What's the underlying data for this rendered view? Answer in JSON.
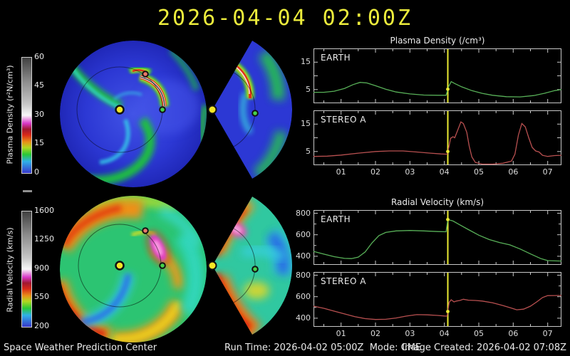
{
  "title": "2026-04-04 02:00Z",
  "colorbars": {
    "density": {
      "label": "Plasma Density (r²N/cm³)",
      "ticks": [
        "60",
        "45",
        "30",
        "15",
        "0"
      ]
    },
    "velocity": {
      "label": "Radial Velocity (km/s)",
      "ticks": [
        "1600",
        "1250",
        "900",
        "550",
        "200"
      ]
    }
  },
  "markers": {
    "sun_color": "#f5e626",
    "earth_color": "#46d24a",
    "stereo_a_color": "#e87868"
  },
  "footer": {
    "left": "Space Weather Prediction Center",
    "center": "Run Time: 2026-04-02 05:00Z  Mode: CME",
    "right": "Image Created: 2026-04-02 07:08Z"
  },
  "chart_data": [
    {
      "type": "line",
      "group": "Plasma Density (/cm³)",
      "series_label": "EARTH",
      "color": "#58b058",
      "now_line_x": 4.1,
      "now_color": "#ecec32",
      "xlim": [
        0.2,
        7.4
      ],
      "ylim": [
        0,
        20
      ],
      "xticks": [
        1,
        2,
        3,
        4,
        5,
        6,
        7
      ],
      "xticklabels": [
        "01",
        "02",
        "03",
        "04",
        "05",
        "06",
        "07"
      ],
      "yticks": [
        5,
        10,
        15
      ],
      "yticklabels": [
        "5",
        "",
        "15"
      ],
      "yminor": [],
      "x": [
        0.2,
        0.5,
        0.8,
        1.1,
        1.35,
        1.55,
        1.75,
        2.0,
        2.3,
        2.6,
        3.0,
        3.4,
        3.8,
        4.05,
        4.12,
        4.2,
        4.3,
        4.5,
        4.8,
        5.1,
        5.4,
        5.8,
        6.2,
        6.6,
        6.9,
        7.2,
        7.4
      ],
      "y": [
        4.0,
        4.0,
        4.4,
        5.4,
        6.8,
        7.6,
        7.4,
        6.4,
        5.1,
        4.1,
        3.4,
        3.0,
        2.9,
        2.9,
        6.0,
        7.9,
        7.2,
        6.0,
        4.6,
        3.6,
        2.9,
        2.4,
        2.3,
        2.8,
        3.6,
        4.6,
        5.0
      ]
    },
    {
      "type": "line",
      "group": "Plasma Density (/cm³)",
      "series_label": "STEREO A",
      "color": "#b85050",
      "now_line_x": 4.1,
      "now_color": "#ecec32",
      "xlim": [
        0.2,
        7.4
      ],
      "ylim": [
        0,
        20
      ],
      "xticks": [
        1,
        2,
        3,
        4,
        5,
        6,
        7
      ],
      "xticklabels": [
        "01",
        "02",
        "03",
        "04",
        "05",
        "06",
        "07"
      ],
      "yticks": [
        5,
        10,
        15
      ],
      "yticklabels": [
        "5",
        "",
        "15"
      ],
      "yminor": [],
      "x": [
        0.2,
        0.6,
        1.0,
        1.5,
        2.0,
        2.4,
        2.8,
        3.2,
        3.6,
        3.9,
        4.08,
        4.13,
        4.18,
        4.25,
        4.3,
        4.38,
        4.48,
        4.55,
        4.65,
        4.72,
        4.8,
        4.9,
        5.1,
        5.4,
        5.7,
        5.95,
        6.05,
        6.15,
        6.25,
        6.35,
        6.45,
        6.55,
        6.65,
        6.75,
        6.85,
        7.0,
        7.2,
        7.4
      ],
      "y": [
        3.2,
        3.3,
        3.7,
        4.4,
        5.0,
        5.2,
        5.2,
        4.8,
        4.4,
        4.1,
        4.0,
        6.5,
        9.8,
        10.4,
        10.0,
        12.5,
        15.8,
        15.2,
        12.0,
        7.0,
        3.0,
        1.0,
        0.4,
        0.4,
        0.7,
        1.5,
        4.0,
        11.0,
        15.2,
        14.0,
        10.0,
        6.5,
        5.2,
        4.8,
        3.6,
        3.2,
        3.5,
        3.6
      ]
    },
    {
      "type": "line",
      "group": "Radial Velocity (km/s)",
      "series_label": "EARTH",
      "color": "#58b058",
      "now_line_x": 4.1,
      "now_color": "#ecec32",
      "xlim": [
        0.2,
        7.4
      ],
      "ylim": [
        320,
        830
      ],
      "xticks": [
        1,
        2,
        3,
        4,
        5,
        6,
        7
      ],
      "xticklabels": [
        "01",
        "02",
        "03",
        "04",
        "05",
        "06",
        "07"
      ],
      "yticks": [
        400,
        600,
        800
      ],
      "yticklabels": [
        "400",
        "600",
        "800"
      ],
      "yminor": [
        500,
        700
      ],
      "x": [
        0.2,
        0.5,
        0.8,
        1.1,
        1.3,
        1.5,
        1.7,
        1.9,
        2.1,
        2.3,
        2.6,
        3.0,
        3.4,
        3.8,
        4.05,
        4.1,
        4.25,
        4.45,
        4.7,
        5.0,
        5.3,
        5.6,
        5.9,
        6.2,
        6.5,
        6.8,
        7.0,
        7.2,
        7.4
      ],
      "y": [
        445,
        420,
        396,
        380,
        378,
        392,
        440,
        525,
        592,
        622,
        636,
        640,
        636,
        630,
        628,
        742,
        728,
        692,
        648,
        596,
        556,
        528,
        506,
        468,
        422,
        378,
        360,
        357,
        356
      ]
    },
    {
      "type": "line",
      "group": "Radial Velocity (km/s)",
      "series_label": "STEREO A",
      "color": "#b85050",
      "now_line_x": 4.1,
      "now_color": "#ecec32",
      "xlim": [
        0.2,
        7.4
      ],
      "ylim": [
        320,
        830
      ],
      "xticks": [
        1,
        2,
        3,
        4,
        5,
        6,
        7
      ],
      "xticklabels": [
        "01",
        "02",
        "03",
        "04",
        "05",
        "06",
        "07"
      ],
      "yticks": [
        400,
        600,
        800
      ],
      "yticklabels": [
        "400",
        "600",
        "800"
      ],
      "yminor": [
        500,
        700
      ],
      "x": [
        0.2,
        0.5,
        0.8,
        1.1,
        1.4,
        1.7,
        2.0,
        2.3,
        2.6,
        2.9,
        3.2,
        3.5,
        3.8,
        4.0,
        4.08,
        4.14,
        4.2,
        4.28,
        4.35,
        4.45,
        4.55,
        4.7,
        4.9,
        5.1,
        5.4,
        5.7,
        5.95,
        6.1,
        6.3,
        6.5,
        6.7,
        6.85,
        7.0,
        7.2,
        7.4
      ],
      "y": [
        512,
        492,
        466,
        440,
        414,
        396,
        388,
        390,
        402,
        420,
        433,
        431,
        426,
        421,
        420,
        548,
        572,
        552,
        560,
        565,
        576,
        568,
        565,
        560,
        544,
        518,
        494,
        478,
        484,
        512,
        556,
        592,
        610,
        611,
        612
      ]
    }
  ]
}
